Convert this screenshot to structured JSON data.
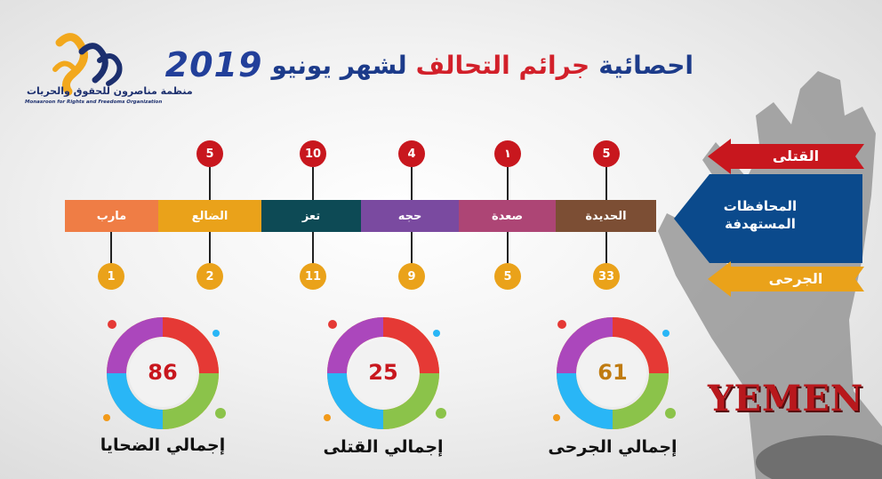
{
  "org": {
    "name": "منظمة مناصرون للحقوق والحريات",
    "subtitle": "Monasroon for Rights and Freedoms Organization",
    "colors": {
      "primary": "#1c2f6e",
      "accent": "#f2a81d"
    }
  },
  "title": {
    "part1": "احصائية",
    "part2": "جرائم التحالف",
    "part3": "لشهر يونيو",
    "year": "2019"
  },
  "legend": {
    "killed": "القتلى",
    "provinces": "المحافظات المستهدفة",
    "injured": "الجرحى",
    "colors": {
      "killed": "#c8171e",
      "provinces": "#0b4a8c",
      "injured": "#eaa21a"
    }
  },
  "provinces": [
    {
      "name": "مارب",
      "killed": "",
      "injured": "1",
      "color": "#ef7d45"
    },
    {
      "name": "الضالع",
      "killed": "5",
      "injured": "2",
      "color": "#eaa21a"
    },
    {
      "name": "تعز",
      "killed": "10",
      "injured": "11",
      "color": "#0d4a55"
    },
    {
      "name": "حجه",
      "killed": "4",
      "injured": "9",
      "color": "#7a4aa0"
    },
    {
      "name": "صعدة",
      "killed": "١",
      "injured": "5",
      "color": "#ad4575"
    },
    {
      "name": "الحديدة",
      "killed": "5",
      "injured": "33",
      "color": "#7c4e34"
    }
  ],
  "totals": [
    {
      "value": "86",
      "label": "إجمالي الضحايا",
      "color": "#c8171e"
    },
    {
      "value": "25",
      "label": "إجمالي القتلى",
      "color": "#c8171e"
    },
    {
      "value": "61",
      "label": "إجمالي الجرحى",
      "color": "#c07b10"
    }
  ],
  "watermark": "YEMEN"
}
